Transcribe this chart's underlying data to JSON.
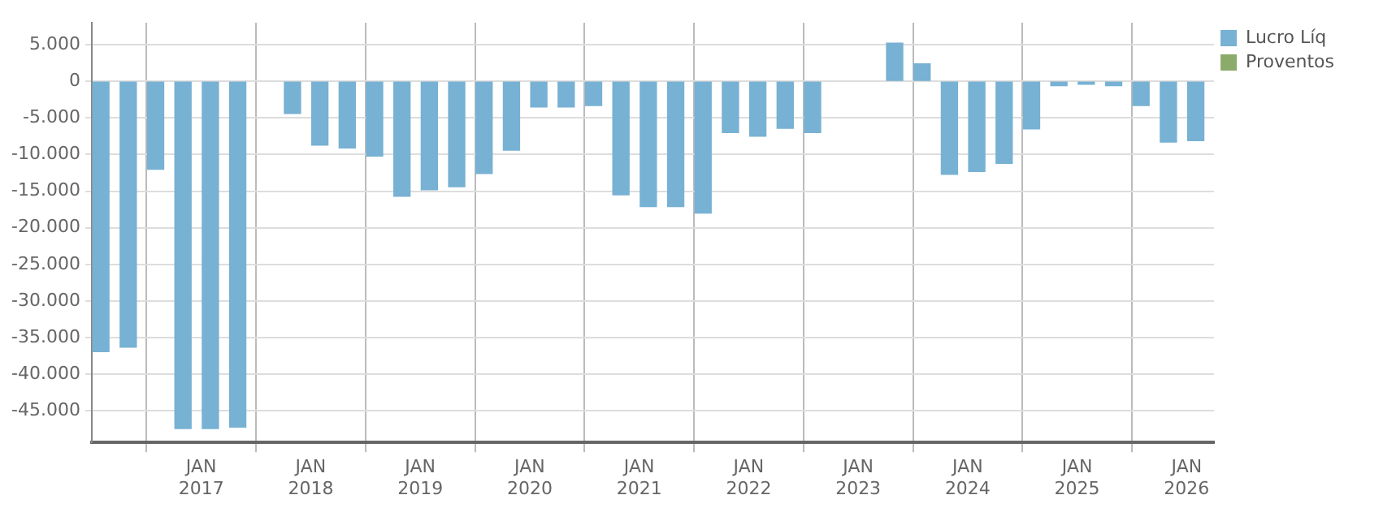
{
  "chart_data": {
    "type": "bar",
    "x": [
      "2016-02",
      "2016-05",
      "2016-08",
      "2016-11",
      "2017-02",
      "2017-05",
      "2017-08",
      "2017-11",
      "2018-02",
      "2018-05",
      "2018-08",
      "2018-11",
      "2019-02",
      "2019-05",
      "2019-08",
      "2019-11",
      "2020-02",
      "2020-05",
      "2020-08",
      "2020-11",
      "2021-02",
      "2021-05",
      "2021-08",
      "2021-11",
      "2022-02",
      "2022-05",
      "2022-08",
      "2022-11",
      "2023-02",
      "2023-05",
      "2023-08",
      "2023-11",
      "2024-02",
      "2024-05",
      "2024-08",
      "2024-11",
      "2025-02",
      "2025-05",
      "2025-08",
      "2025-11",
      "2026-02"
    ],
    "series": [
      {
        "name": "Lucro Líq",
        "color": "#77b1d3",
        "values": [
          -36900,
          -36300,
          -12000,
          -47400,
          -47400,
          -47200,
          null,
          -4400,
          -8700,
          -9100,
          -10200,
          -15700,
          -14800,
          -14400,
          -12600,
          -9400,
          -3500,
          -3500,
          -3300,
          -15500,
          -17100,
          -17100,
          -18000,
          -7000,
          -7500,
          -6400,
          -7000,
          null,
          null,
          5200,
          2400,
          -12700,
          -12300,
          -11200,
          -6500,
          -600,
          -400,
          -600,
          -3300,
          -8300,
          -8100
        ]
      },
      {
        "name": "Proventos",
        "color": "#8aab6a",
        "values": [
          null,
          null,
          null,
          null,
          null,
          null,
          null,
          null,
          null,
          null,
          null,
          null,
          null,
          null,
          null,
          null,
          null,
          null,
          null,
          null,
          null,
          null,
          null,
          null,
          null,
          null,
          null,
          null,
          null,
          null,
          null,
          null,
          null,
          null,
          null,
          null,
          null,
          null,
          null,
          null,
          null
        ]
      }
    ],
    "xlim": [
      "2016-01",
      "2026-04"
    ],
    "xticks": [
      {
        "value": "2017-01",
        "label": "JAN 2017"
      },
      {
        "value": "2018-01",
        "label": "JAN 2018"
      },
      {
        "value": "2019-01",
        "label": "JAN 2019"
      },
      {
        "value": "2020-01",
        "label": "JAN 2020"
      },
      {
        "value": "2021-01",
        "label": "JAN 2021"
      },
      {
        "value": "2022-01",
        "label": "JAN 2022"
      },
      {
        "value": "2023-01",
        "label": "JAN 2023"
      },
      {
        "value": "2024-01",
        "label": "JAN 2024"
      },
      {
        "value": "2025-01",
        "label": "JAN 2025"
      },
      {
        "value": "2026-01",
        "label": "JAN 2026"
      }
    ],
    "ylim": [
      -49300,
      8000
    ],
    "yticks": [
      {
        "value": 5000,
        "label": "5.000"
      },
      0,
      {
        "value": -5000,
        "label": "-5.000"
      },
      {
        "value": -10000,
        "label": "-10.000"
      },
      {
        "value": -15000,
        "label": "-15.000"
      },
      {
        "value": -20000,
        "label": "-20.000"
      },
      {
        "value": -25000,
        "label": "-25.000"
      },
      {
        "value": -30000,
        "label": "-30.000"
      },
      {
        "value": -35000,
        "label": "-35.000"
      },
      {
        "value": -40000,
        "label": "-40.000"
      },
      {
        "value": -45000,
        "label": "-45.000"
      }
    ],
    "grid": true,
    "legend": "top right"
  }
}
